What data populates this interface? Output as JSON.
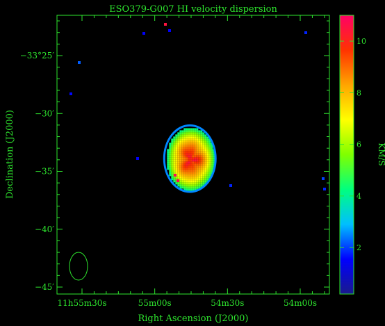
{
  "chart_data": {
    "type": "heatmap",
    "title": "ESO379-G007  HI velocity dispersion",
    "xlabel": "Right Ascension (J2000)",
    "ylabel": "Declination (J2000)",
    "colorbar_label": "KM/S",
    "x_ticks": [
      {
        "label": "11h55m30s",
        "ra_s": 30
      },
      {
        "label": "55m00s",
        "ra_s": 0
      },
      {
        "label": "54m30s",
        "ra_s": -30
      },
      {
        "label": "54m00s",
        "ra_s": -60
      }
    ],
    "y_ticks": [
      {
        "label": "−33°25′",
        "dec_arcmin": -25
      },
      {
        "label": "−30′",
        "dec_arcmin": -30
      },
      {
        "label": "−35′",
        "dec_arcmin": -35
      },
      {
        "label": "−40′",
        "dec_arcmin": -40
      },
      {
        "label": "−45′",
        "dec_arcmin": -45
      }
    ],
    "colorbar_ticks": [
      "2",
      "4",
      "6",
      "8",
      "10"
    ],
    "colorbar_range": [
      0.2,
      11.0
    ],
    "colormap": [
      "#1a1a8c",
      "#0000ff",
      "#00bfff",
      "#00ff7f",
      "#7fff00",
      "#ffff00",
      "#ffa500",
      "#ff3300",
      "#ff0066"
    ],
    "source": {
      "ra_s": -14.5,
      "dec_arcmin": -33.9,
      "major_arcmin": 5.5,
      "minor_arcmin": 4.2,
      "peak_kms": 10.0,
      "edge_kms": 4.0
    },
    "beam": {
      "label": "beam"
    }
  },
  "axis_color": "#2ee62e"
}
